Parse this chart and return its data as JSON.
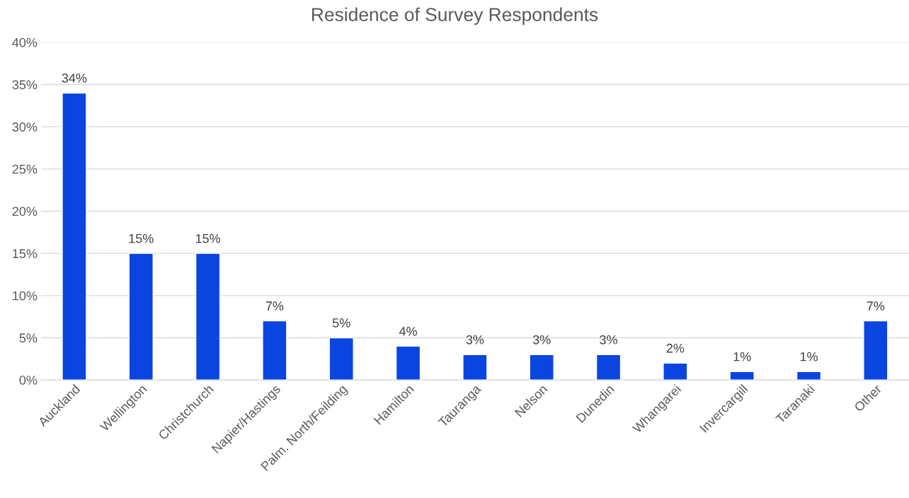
{
  "chart_data": {
    "type": "bar",
    "title": "Residence of Survey Respondents",
    "categories": [
      "Auckland",
      "Wellington",
      "Christchurch",
      "Napier/Hastings",
      "Palm. North/Feilding",
      "Hamilton",
      "Tauranga",
      "Nelson",
      "Dunedin",
      "Whangarei",
      "Invercargill",
      "Taranaki",
      "Other"
    ],
    "values": [
      34,
      15,
      15,
      7,
      5,
      4,
      3,
      3,
      3,
      2,
      1,
      1,
      7
    ],
    "value_labels": [
      "34%",
      "15%",
      "15%",
      "7%",
      "5%",
      "4%",
      "3%",
      "3%",
      "3%",
      "2%",
      "1%",
      "1%",
      "7%"
    ],
    "color": "#0b45e0",
    "ylim": [
      0,
      40
    ],
    "yticks": [
      {
        "value": 0,
        "label": "0%"
      },
      {
        "value": 5,
        "label": "5%"
      },
      {
        "value": 10,
        "label": "10%"
      },
      {
        "value": 15,
        "label": "15%"
      },
      {
        "value": 20,
        "label": "20%"
      },
      {
        "value": 25,
        "label": "25%"
      },
      {
        "value": 30,
        "label": "30%"
      },
      {
        "value": 35,
        "label": "35%"
      },
      {
        "value": 40,
        "label": "40%"
      }
    ],
    "grid": "y",
    "legend": false
  }
}
